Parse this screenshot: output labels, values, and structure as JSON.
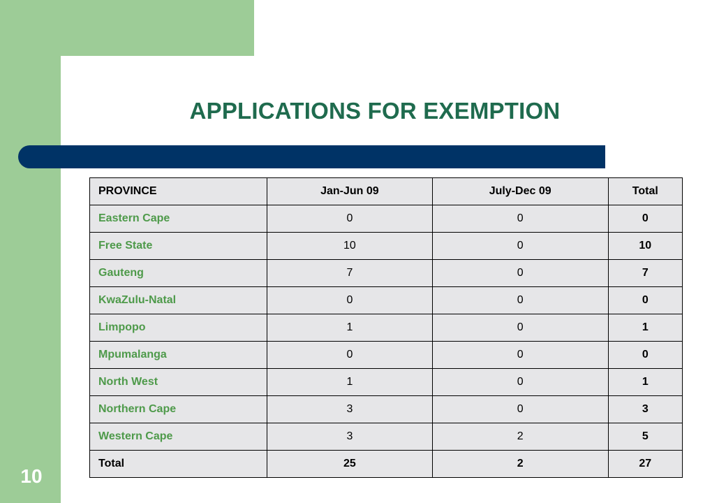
{
  "slide": {
    "title": "APPLICATIONS FOR EXEMPTION",
    "number": "10"
  },
  "table": {
    "headers": [
      "PROVINCE",
      "Jan-Jun 09",
      "July-Dec 09",
      "Total"
    ],
    "rows": [
      {
        "province": "Eastern Cape",
        "jan_jun": "0",
        "jul_dec": "0",
        "total": "0"
      },
      {
        "province": "Free State",
        "jan_jun": "10",
        "jul_dec": "0",
        "total": "10"
      },
      {
        "province": "Gauteng",
        "jan_jun": "7",
        "jul_dec": "0",
        "total": "7"
      },
      {
        "province": "KwaZulu-Natal",
        "jan_jun": "0",
        "jul_dec": "0",
        "total": "0"
      },
      {
        "province": "Limpopo",
        "jan_jun": "1",
        "jul_dec": "0",
        "total": "1"
      },
      {
        "province": "Mpumalanga",
        "jan_jun": "0",
        "jul_dec": "0",
        "total": "0"
      },
      {
        "province": "North West",
        "jan_jun": "1",
        "jul_dec": "0",
        "total": "1"
      },
      {
        "province": "Northern Cape",
        "jan_jun": "3",
        "jul_dec": "0",
        "total": "3"
      },
      {
        "province": "Western Cape",
        "jan_jun": "3",
        "jul_dec": "2",
        "total": "5"
      }
    ],
    "total_row": {
      "label": "Total",
      "jan_jun": "25",
      "jul_dec": "2",
      "total": "27"
    }
  },
  "colors": {
    "green_background": "#9dcc97",
    "title_green": "#1f6b4e",
    "navy_bar": "#003366",
    "province_green": "#4e9a4a",
    "table_fill": "#e6e6e8"
  }
}
